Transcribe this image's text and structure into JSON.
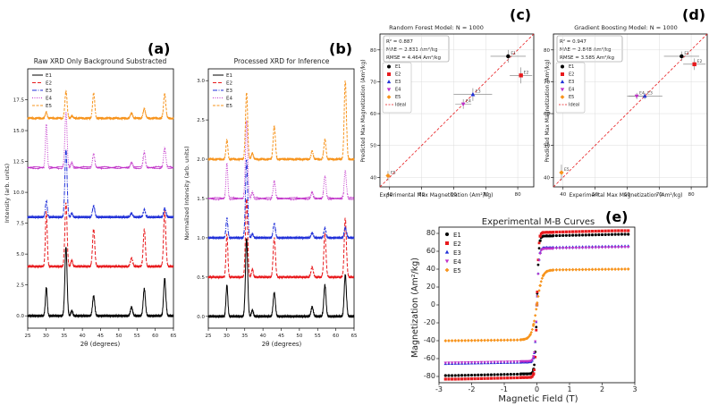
{
  "panels": {
    "a": {
      "letter": "(a)",
      "title": "Raw XRD Only Background Substracted",
      "xlabel": "2θ (degrees)",
      "ylabel": "Intensity (arb. units)"
    },
    "b": {
      "letter": "(b)",
      "title": "Processed XRD for Inference",
      "xlabel": "2θ (degrees)",
      "ylabel": "Normalized Intensity (arb. units)"
    },
    "c": {
      "letter": "(c)",
      "title": "Random Forest Model: N = 1000",
      "xlabel": "Experimental Max Magnetization (Am²/kg)",
      "ylabel": "Predicted Max Magnetization (Am²/kg)",
      "stats": [
        "R² = 0.887",
        "MAE = 2.831 Am²/kg",
        "RMSE = 4.464 Am²/kg"
      ]
    },
    "d": {
      "letter": "(d)",
      "title": "Gradient Boosting Model: N = 1000",
      "xlabel": "Experimental Max Magnetization (Am²/kg)",
      "ylabel": "Predicted Max Magnetization (Am²/kg)",
      "stats": [
        "R² = 0.947",
        "MAE = 2.848 Am²/kg",
        "RMSE = 3.585 Am²/kg"
      ]
    },
    "e": {
      "letter": "(e)",
      "title": "Experimental M-B Curves",
      "xlabel": "Magnetic Field (T)",
      "ylabel": "Magnetization (Am²/kg)"
    }
  },
  "ideal_label": "Ideal",
  "colors": {
    "E1": "#000000",
    "E2": "#e8191c",
    "E3": "#1f2fd8",
    "E4": "#c030c8",
    "E5": "#f7941d"
  },
  "chart_data": [
    {
      "type": "line",
      "panel": "a",
      "title": "Raw XRD Only Background Substracted",
      "xlabel": "2θ (degrees)",
      "ylabel": "Intensity (arb. units)",
      "xlim": [
        25,
        65
      ],
      "ylim": [
        -1,
        20
      ],
      "xticks": [
        25,
        30,
        35,
        40,
        45,
        50,
        55,
        60,
        65
      ],
      "yticks": [
        0.0,
        2.5,
        5.0,
        7.5,
        10.0,
        12.5,
        15.0,
        17.5
      ],
      "legend": "top-left",
      "peaks_deg": [
        30.1,
        35.5,
        37.1,
        43.1,
        53.5,
        57.0,
        62.6
      ],
      "series": [
        {
          "name": "E1",
          "offset": 0,
          "heights": [
            2.3,
            5.6,
            0.4,
            1.6,
            0.7,
            2.2,
            3.0
          ]
        },
        {
          "name": "E2",
          "offset": 4.0,
          "heights": [
            4.5,
            5.2,
            0.5,
            3.0,
            0.7,
            3.0,
            4.5
          ]
        },
        {
          "name": "E3",
          "offset": 8.0,
          "heights": [
            1.3,
            5.5,
            0.3,
            0.9,
            0.3,
            0.6,
            0.7
          ]
        },
        {
          "name": "E4",
          "offset": 12.0,
          "heights": [
            3.5,
            4.5,
            0.4,
            1.1,
            0.4,
            1.3,
            1.6
          ]
        },
        {
          "name": "E5",
          "offset": 16.0,
          "heights": [
            0.5,
            2.2,
            0.2,
            2.0,
            0.4,
            0.8,
            2.0
          ]
        }
      ]
    },
    {
      "type": "line",
      "panel": "b",
      "title": "Processed XRD for Inference",
      "xlabel": "2θ (degrees)",
      "ylabel": "Normalized Intensity (arb. units)",
      "xlim": [
        25,
        65
      ],
      "ylim": [
        -0.15,
        3.15
      ],
      "xticks": [
        25,
        30,
        35,
        40,
        45,
        50,
        55,
        60,
        65
      ],
      "yticks": [
        0.0,
        0.5,
        1.0,
        1.5,
        2.0,
        2.5,
        3.0
      ],
      "legend": "top-left",
      "peaks_deg": [
        30.1,
        35.5,
        37.1,
        43.1,
        53.5,
        57.0,
        62.6
      ],
      "series": [
        {
          "name": "E1",
          "offset": 0,
          "heights": [
            0.4,
            1.0,
            0.08,
            0.3,
            0.12,
            0.4,
            0.53
          ]
        },
        {
          "name": "E2",
          "offset": 0.5,
          "heights": [
            0.55,
            1.0,
            0.1,
            0.5,
            0.13,
            0.55,
            0.75
          ]
        },
        {
          "name": "E3",
          "offset": 1.0,
          "heights": [
            0.25,
            1.0,
            0.05,
            0.18,
            0.06,
            0.12,
            0.13
          ]
        },
        {
          "name": "E4",
          "offset": 1.5,
          "heights": [
            0.45,
            1.0,
            0.08,
            0.22,
            0.08,
            0.28,
            0.35
          ]
        },
        {
          "name": "E5",
          "offset": 2.0,
          "heights": [
            0.25,
            0.85,
            0.08,
            0.42,
            0.1,
            0.25,
            1.0
          ]
        }
      ]
    },
    {
      "type": "scatter",
      "panel": "c",
      "title": "Random Forest Model: N = 1000",
      "xlim": [
        37,
        85
      ],
      "ylim": [
        37,
        85
      ],
      "xticks": [
        40,
        50,
        60,
        70,
        80
      ],
      "yticks": [
        40,
        50,
        60,
        70,
        80
      ],
      "legend": "top-left",
      "grid": true,
      "points": [
        {
          "name": "E1",
          "x": 77,
          "y": 78,
          "xerr": 5.5,
          "yerr": 2.0
        },
        {
          "name": "E2",
          "x": 81,
          "y": 72,
          "xerr": 3.5,
          "yerr": 2.5
        },
        {
          "name": "E3",
          "x": 66,
          "y": 66,
          "xerr": 6.0,
          "yerr": 2.0
        },
        {
          "name": "E4",
          "x": 63,
          "y": 63,
          "xerr": 2.5,
          "yerr": 1.5
        },
        {
          "name": "E5",
          "x": 39.5,
          "y": 40.5,
          "xerr": 0,
          "yerr": 1.5
        }
      ]
    },
    {
      "type": "scatter",
      "panel": "d",
      "title": "Gradient Boosting Model: N = 1000",
      "xlim": [
        37,
        85
      ],
      "ylim": [
        37,
        85
      ],
      "xticks": [
        40,
        50,
        60,
        70,
        80
      ],
      "yticks": [
        40,
        50,
        60,
        70,
        80
      ],
      "legend": "top-left",
      "grid": true,
      "points": [
        {
          "name": "E1",
          "x": 77,
          "y": 78,
          "xerr": 5.5,
          "yerr": 1.5
        },
        {
          "name": "E2",
          "x": 81,
          "y": 75.5,
          "xerr": 3.5,
          "yerr": 1.8
        },
        {
          "name": "E3",
          "x": 65.5,
          "y": 65.5,
          "xerr": 5.5,
          "yerr": 1.0
        },
        {
          "name": "E4",
          "x": 63,
          "y": 65.5,
          "xerr": 2.5,
          "yerr": 1.0
        },
        {
          "name": "E5",
          "x": 39.5,
          "y": 41.5,
          "xerr": 0,
          "yerr": 2.5
        }
      ]
    },
    {
      "type": "scatter",
      "panel": "e",
      "title": "Experimental M-B Curves",
      "xlabel": "Magnetic Field (T)",
      "ylabel": "Magnetization (Am²/kg)",
      "xlim": [
        -3,
        3
      ],
      "ylim": [
        -87,
        87
      ],
      "xticks": [
        -3,
        -2,
        -1,
        0,
        1,
        2,
        3
      ],
      "yticks": [
        -80,
        -60,
        -40,
        -20,
        0,
        20,
        40,
        60,
        80
      ],
      "legend": "top-left",
      "series": [
        {
          "name": "E1",
          "Ms": 77,
          "width": 0.06
        },
        {
          "name": "E2",
          "Ms": 81,
          "width": 0.055
        },
        {
          "name": "E3",
          "Ms": 64,
          "width": 0.065
        },
        {
          "name": "E4",
          "Ms": 63,
          "width": 0.065
        },
        {
          "name": "E5",
          "Ms": 39,
          "width": 0.16
        }
      ]
    }
  ]
}
